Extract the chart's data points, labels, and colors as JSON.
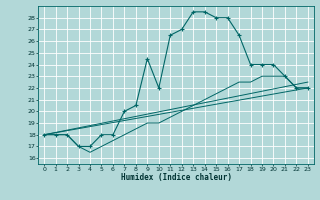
{
  "xlabel": "Humidex (Indice chaleur)",
  "x_ticks": [
    0,
    1,
    2,
    3,
    4,
    5,
    6,
    7,
    8,
    9,
    10,
    11,
    12,
    13,
    14,
    15,
    16,
    17,
    18,
    19,
    20,
    21,
    22,
    23
  ],
  "xlim": [
    -0.5,
    23.5
  ],
  "ylim": [
    15.5,
    29
  ],
  "y_ticks": [
    16,
    17,
    18,
    19,
    20,
    21,
    22,
    23,
    24,
    25,
    26,
    27,
    28
  ],
  "bg_color": "#b2d8d8",
  "grid_color": "#ffffff",
  "line_color": "#006666",
  "main_curve": [
    [
      0,
      18
    ],
    [
      1,
      18
    ],
    [
      2,
      18
    ],
    [
      3,
      17
    ],
    [
      4,
      17
    ],
    [
      5,
      18
    ],
    [
      6,
      18
    ],
    [
      7,
      20
    ],
    [
      8,
      20.5
    ],
    [
      9,
      24.5
    ],
    [
      10,
      22
    ],
    [
      11,
      26.5
    ],
    [
      12,
      27
    ],
    [
      13,
      28.5
    ],
    [
      14,
      28.5
    ],
    [
      15,
      28
    ],
    [
      16,
      28
    ],
    [
      17,
      26.5
    ],
    [
      18,
      24
    ],
    [
      19,
      24
    ],
    [
      20,
      24
    ],
    [
      21,
      23
    ],
    [
      22,
      22
    ],
    [
      23,
      22
    ]
  ],
  "lower_curve": [
    [
      0,
      18
    ],
    [
      1,
      18
    ],
    [
      2,
      18
    ],
    [
      3,
      17
    ],
    [
      4,
      16.5
    ],
    [
      5,
      17
    ],
    [
      6,
      17.5
    ],
    [
      7,
      18
    ],
    [
      8,
      18.5
    ],
    [
      9,
      19
    ],
    [
      10,
      19
    ],
    [
      11,
      19.5
    ],
    [
      12,
      20
    ],
    [
      13,
      20.5
    ],
    [
      14,
      21
    ],
    [
      15,
      21.5
    ],
    [
      16,
      22
    ],
    [
      17,
      22.5
    ],
    [
      18,
      22.5
    ],
    [
      19,
      23
    ],
    [
      20,
      23
    ],
    [
      21,
      23
    ],
    [
      22,
      22
    ],
    [
      23,
      22
    ]
  ],
  "line1": [
    [
      0,
      18
    ],
    [
      23,
      22
    ]
  ],
  "line2": [
    [
      0,
      18
    ],
    [
      23,
      22.5
    ]
  ]
}
